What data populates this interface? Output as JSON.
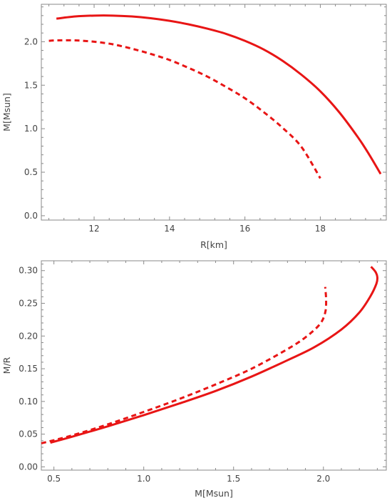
{
  "chart_data": [
    {
      "type": "line",
      "xlabel": "R[km]",
      "ylabel": "M[Msun]",
      "xlim": [
        10.6,
        19.75
      ],
      "ylim": [
        -0.05,
        2.43
      ],
      "xticks": [
        12,
        14,
        16,
        18
      ],
      "xtick_labels": [
        "12",
        "14",
        "16",
        "18"
      ],
      "yticks": [
        0.0,
        0.5,
        1.0,
        1.5,
        2.0
      ],
      "ytick_labels": [
        "0.0",
        "0.5",
        "1.0",
        "1.5",
        "2.0"
      ],
      "grid": false,
      "series": [
        {
          "style": "solid",
          "color": "#e81515",
          "x": [
            11.0,
            11.5,
            12.0,
            12.5,
            13.0,
            13.5,
            14.0,
            14.5,
            15.0,
            15.5,
            16.0,
            16.5,
            17.0,
            17.5,
            18.0,
            18.5,
            19.0,
            19.3,
            19.6
          ],
          "y": [
            2.265,
            2.29,
            2.3,
            2.3,
            2.29,
            2.27,
            2.24,
            2.2,
            2.15,
            2.09,
            2.01,
            1.91,
            1.78,
            1.62,
            1.43,
            1.19,
            0.9,
            0.7,
            0.48
          ]
        },
        {
          "style": "dashed",
          "color": "#e81515",
          "x": [
            10.8,
            11.0,
            11.5,
            12.0,
            12.5,
            13.0,
            13.5,
            14.0,
            14.5,
            15.0,
            15.5,
            16.0,
            16.5,
            17.0,
            17.5,
            18.0
          ],
          "y": [
            2.01,
            2.015,
            2.015,
            2.0,
            1.97,
            1.92,
            1.86,
            1.79,
            1.7,
            1.6,
            1.48,
            1.35,
            1.19,
            1.01,
            0.79,
            0.43
          ]
        }
      ]
    },
    {
      "type": "line",
      "xlabel": "M[Msun]",
      "ylabel": "M/R",
      "xlim": [
        0.43,
        2.35
      ],
      "ylim": [
        -0.005,
        0.315
      ],
      "xticks": [
        0.5,
        1.0,
        1.5,
        2.0
      ],
      "xtick_labels": [
        "0.5",
        "1.0",
        "1.5",
        "2.0"
      ],
      "yticks": [
        0.0,
        0.05,
        0.1,
        0.15,
        0.2,
        0.25,
        0.3
      ],
      "ytick_labels": [
        "0.00",
        "0.05",
        "0.10",
        "0.15",
        "0.20",
        "0.25",
        "0.30"
      ],
      "grid": false,
      "series": [
        {
          "style": "solid",
          "color": "#e81515",
          "x": [
            0.48,
            0.6,
            0.8,
            1.0,
            1.2,
            1.4,
            1.6,
            1.8,
            1.95,
            2.1,
            2.2,
            2.26,
            2.295,
            2.3,
            2.29,
            2.265
          ],
          "y": [
            0.037,
            0.046,
            0.062,
            0.079,
            0.097,
            0.116,
            0.138,
            0.163,
            0.183,
            0.21,
            0.236,
            0.26,
            0.28,
            0.29,
            0.298,
            0.306
          ]
        },
        {
          "style": "dashed",
          "color": "#e81515",
          "x": [
            0.43,
            0.6,
            0.8,
            1.0,
            1.2,
            1.4,
            1.6,
            1.8,
            1.9,
            1.98,
            2.01,
            2.015,
            2.01
          ],
          "y": [
            0.036,
            0.048,
            0.065,
            0.084,
            0.104,
            0.126,
            0.15,
            0.18,
            0.198,
            0.218,
            0.236,
            0.255,
            0.275
          ]
        }
      ]
    }
  ]
}
